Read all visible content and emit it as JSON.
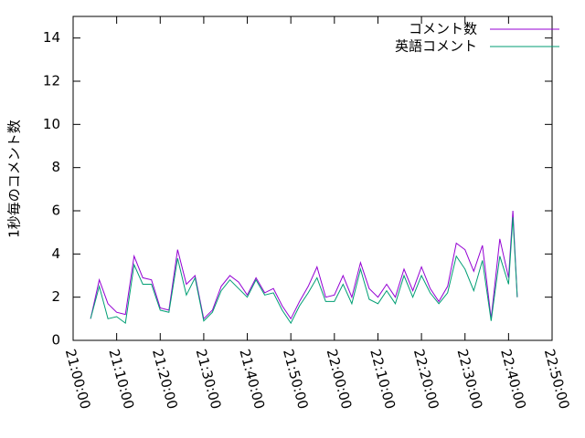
{
  "chart_data": {
    "type": "line",
    "ylabel": "1秒毎のコメント数",
    "x": [
      "21:04:00",
      "21:06:00",
      "21:08:00",
      "21:10:00",
      "21:12:00",
      "21:14:00",
      "21:16:00",
      "21:18:00",
      "21:20:00",
      "21:22:00",
      "21:24:00",
      "21:26:00",
      "21:28:00",
      "21:30:00",
      "21:32:00",
      "21:34:00",
      "21:36:00",
      "21:38:00",
      "21:40:00",
      "21:42:00",
      "21:44:00",
      "21:46:00",
      "21:48:00",
      "21:50:00",
      "21:52:00",
      "21:54:00",
      "21:56:00",
      "21:58:00",
      "22:00:00",
      "22:02:00",
      "22:04:00",
      "22:06:00",
      "22:08:00",
      "22:10:00",
      "22:12:00",
      "22:14:00",
      "22:16:00",
      "22:18:00",
      "22:20:00",
      "22:22:00",
      "22:24:00",
      "22:26:00",
      "22:28:00",
      "22:30:00",
      "22:32:00",
      "22:34:00",
      "22:36:00",
      "22:38:00",
      "22:40:00",
      "22:41:00",
      "22:42:00"
    ],
    "series": [
      {
        "name": "コメント数",
        "color": "#9400d3",
        "values": [
          1.0,
          2.8,
          1.7,
          1.3,
          1.2,
          3.9,
          2.9,
          2.8,
          1.5,
          1.4,
          4.2,
          2.6,
          3.0,
          1.0,
          1.4,
          2.5,
          3.0,
          2.7,
          2.1,
          2.9,
          2.2,
          2.4,
          1.6,
          1.0,
          1.8,
          2.5,
          3.4,
          2.0,
          2.1,
          3.0,
          2.0,
          3.6,
          2.4,
          2.0,
          2.6,
          2.0,
          3.3,
          2.3,
          3.4,
          2.4,
          1.8,
          2.5,
          4.5,
          4.2,
          3.2,
          4.4,
          1.0,
          4.7,
          2.9,
          6.0,
          2.0
        ]
      },
      {
        "name": "英語コメント",
        "color": "#009e73",
        "values": [
          1.0,
          2.5,
          1.0,
          1.1,
          0.8,
          3.5,
          2.6,
          2.6,
          1.4,
          1.3,
          3.8,
          2.1,
          2.9,
          0.9,
          1.3,
          2.3,
          2.8,
          2.4,
          2.0,
          2.8,
          2.1,
          2.2,
          1.4,
          0.8,
          1.6,
          2.2,
          2.9,
          1.8,
          1.8,
          2.6,
          1.7,
          3.3,
          1.9,
          1.7,
          2.3,
          1.7,
          3.0,
          2.0,
          3.0,
          2.2,
          1.7,
          2.2,
          3.9,
          3.3,
          2.3,
          3.7,
          0.9,
          3.9,
          2.6,
          5.7,
          2.0
        ]
      }
    ],
    "xlim": [
      "21:00:00",
      "22:50:00"
    ],
    "xticks": [
      "21:00:00",
      "21:10:00",
      "21:20:00",
      "21:30:00",
      "21:40:00",
      "21:50:00",
      "22:00:00",
      "22:10:00",
      "22:20:00",
      "22:30:00",
      "22:40:00",
      "22:50:00"
    ],
    "ylim": [
      0,
      15
    ],
    "yticks": [
      0,
      2,
      4,
      6,
      8,
      10,
      12,
      14
    ],
    "legend": "top-right"
  }
}
